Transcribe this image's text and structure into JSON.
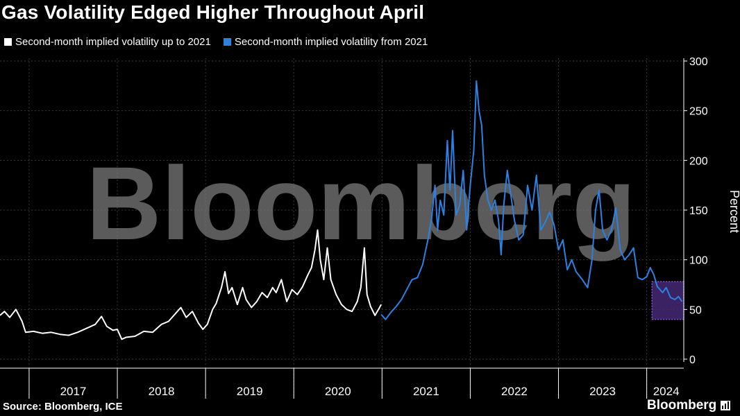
{
  "title": "Gas Volatility Edged Higher Throughout April",
  "source": "Source: Bloomberg, ICE",
  "brand": "Bloomberg",
  "watermark": "Bloomberg",
  "colors": {
    "background": "#000000",
    "series_white": "#ffffff",
    "series_blue": "#2b82e3",
    "highlight_fill": "#4a2a7a",
    "highlight_border": "#8a5cd0",
    "grid": "#3a3a3a"
  },
  "chart_data": {
    "type": "line",
    "title": "Gas Volatility Edged Higher Throughout April",
    "xlabel": "",
    "ylabel": "Percent",
    "ylim": [
      0,
      300
    ],
    "yticks": [
      0,
      50,
      100,
      150,
      200,
      250,
      300
    ],
    "xlim": [
      2016.67,
      2024.42
    ],
    "year_labels": [
      "2017",
      "2018",
      "2019",
      "2020",
      "2021",
      "2022",
      "2023",
      "2024"
    ],
    "grid": true,
    "legend_position": "top-left",
    "series": [
      {
        "name": "Second-month implied volatility up to 2021",
        "color": "#ffffff",
        "points": [
          [
            2016.67,
            44
          ],
          [
            2016.72,
            48
          ],
          [
            2016.78,
            42
          ],
          [
            2016.85,
            50
          ],
          [
            2016.92,
            38
          ],
          [
            2016.96,
            27
          ],
          [
            2017.05,
            28
          ],
          [
            2017.15,
            26
          ],
          [
            2017.25,
            27
          ],
          [
            2017.35,
            25
          ],
          [
            2017.45,
            24
          ],
          [
            2017.55,
            27
          ],
          [
            2017.65,
            31
          ],
          [
            2017.75,
            35
          ],
          [
            2017.82,
            43
          ],
          [
            2017.88,
            33
          ],
          [
            2017.95,
            29
          ],
          [
            2018.0,
            30
          ],
          [
            2018.05,
            20
          ],
          [
            2018.1,
            22
          ],
          [
            2018.2,
            23
          ],
          [
            2018.3,
            28
          ],
          [
            2018.4,
            27
          ],
          [
            2018.5,
            35
          ],
          [
            2018.58,
            38
          ],
          [
            2018.65,
            45
          ],
          [
            2018.72,
            52
          ],
          [
            2018.78,
            42
          ],
          [
            2018.85,
            48
          ],
          [
            2018.92,
            36
          ],
          [
            2018.97,
            30
          ],
          [
            2019.02,
            35
          ],
          [
            2019.08,
            50
          ],
          [
            2019.12,
            56
          ],
          [
            2019.18,
            72
          ],
          [
            2019.22,
            88
          ],
          [
            2019.26,
            66
          ],
          [
            2019.3,
            72
          ],
          [
            2019.36,
            55
          ],
          [
            2019.42,
            72
          ],
          [
            2019.46,
            60
          ],
          [
            2019.52,
            52
          ],
          [
            2019.58,
            58
          ],
          [
            2019.64,
            67
          ],
          [
            2019.7,
            62
          ],
          [
            2019.76,
            72
          ],
          [
            2019.8,
            67
          ],
          [
            2019.86,
            80
          ],
          [
            2019.92,
            58
          ],
          [
            2019.98,
            70
          ],
          [
            2020.04,
            65
          ],
          [
            2020.1,
            73
          ],
          [
            2020.16,
            85
          ],
          [
            2020.2,
            92
          ],
          [
            2020.24,
            110
          ],
          [
            2020.27,
            130
          ],
          [
            2020.3,
            100
          ],
          [
            2020.34,
            80
          ],
          [
            2020.38,
            112
          ],
          [
            2020.42,
            80
          ],
          [
            2020.48,
            65
          ],
          [
            2020.54,
            55
          ],
          [
            2020.6,
            50
          ],
          [
            2020.66,
            48
          ],
          [
            2020.72,
            58
          ],
          [
            2020.76,
            72
          ],
          [
            2020.8,
            112
          ],
          [
            2020.83,
            65
          ],
          [
            2020.87,
            53
          ],
          [
            2020.92,
            44
          ],
          [
            2020.96,
            50
          ],
          [
            2020.99,
            55
          ]
        ]
      },
      {
        "name": "Second-month implied volatility from 2021",
        "color": "#2b82e3",
        "points": [
          [
            2020.99,
            45
          ],
          [
            2021.04,
            40
          ],
          [
            2021.1,
            47
          ],
          [
            2021.16,
            53
          ],
          [
            2021.22,
            60
          ],
          [
            2021.28,
            70
          ],
          [
            2021.34,
            80
          ],
          [
            2021.4,
            82
          ],
          [
            2021.46,
            95
          ],
          [
            2021.52,
            120
          ],
          [
            2021.56,
            140
          ],
          [
            2021.6,
            175
          ],
          [
            2021.63,
            130
          ],
          [
            2021.66,
            160
          ],
          [
            2021.7,
            145
          ],
          [
            2021.74,
            220
          ],
          [
            2021.77,
            170
          ],
          [
            2021.8,
            230
          ],
          [
            2021.84,
            145
          ],
          [
            2021.88,
            155
          ],
          [
            2021.92,
            190
          ],
          [
            2021.96,
            130
          ],
          [
            2022.0,
            175
          ],
          [
            2022.04,
            210
          ],
          [
            2022.07,
            280
          ],
          [
            2022.1,
            250
          ],
          [
            2022.13,
            235
          ],
          [
            2022.16,
            185
          ],
          [
            2022.2,
            160
          ],
          [
            2022.24,
            150
          ],
          [
            2022.28,
            160
          ],
          [
            2022.32,
            140
          ],
          [
            2022.35,
            105
          ],
          [
            2022.38,
            155
          ],
          [
            2022.42,
            190
          ],
          [
            2022.46,
            165
          ],
          [
            2022.5,
            140
          ],
          [
            2022.55,
            120
          ],
          [
            2022.6,
            125
          ],
          [
            2022.65,
            175
          ],
          [
            2022.7,
            150
          ],
          [
            2022.75,
            185
          ],
          [
            2022.8,
            130
          ],
          [
            2022.85,
            138
          ],
          [
            2022.9,
            148
          ],
          [
            2022.95,
            135
          ],
          [
            2023.0,
            110
          ],
          [
            2023.05,
            120
          ],
          [
            2023.1,
            90
          ],
          [
            2023.15,
            100
          ],
          [
            2023.2,
            88
          ],
          [
            2023.27,
            80
          ],
          [
            2023.33,
            72
          ],
          [
            2023.38,
            100
          ],
          [
            2023.42,
            150
          ],
          [
            2023.46,
            170
          ],
          [
            2023.5,
            130
          ],
          [
            2023.55,
            120
          ],
          [
            2023.6,
            130
          ],
          [
            2023.65,
            152
          ],
          [
            2023.7,
            110
          ],
          [
            2023.75,
            100
          ],
          [
            2023.8,
            105
          ],
          [
            2023.85,
            112
          ],
          [
            2023.9,
            82
          ],
          [
            2023.95,
            80
          ],
          [
            2024.0,
            83
          ],
          [
            2024.04,
            92
          ],
          [
            2024.08,
            85
          ],
          [
            2024.12,
            73
          ],
          [
            2024.18,
            67
          ],
          [
            2024.22,
            72
          ],
          [
            2024.27,
            62
          ],
          [
            2024.32,
            60
          ],
          [
            2024.36,
            63
          ],
          [
            2024.4,
            58
          ]
        ]
      }
    ],
    "highlight": {
      "x_range": [
        2024.06,
        2024.42
      ],
      "y_range": [
        40,
        78
      ]
    }
  }
}
